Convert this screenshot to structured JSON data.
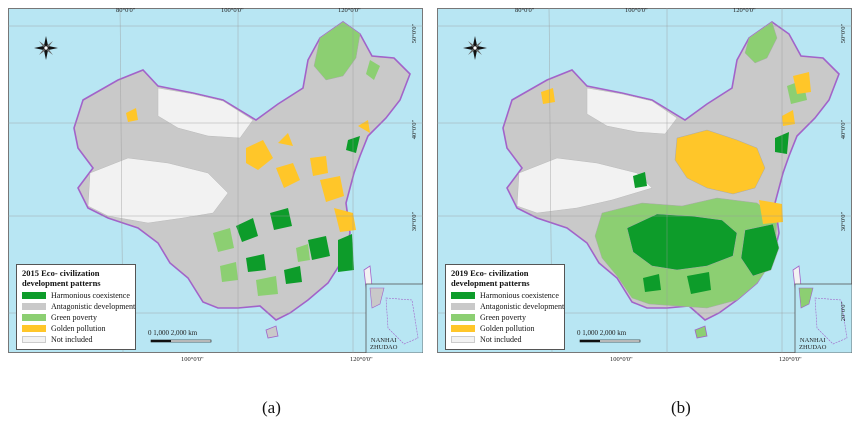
{
  "colors": {
    "harmonious": "#0d9c2a",
    "antagonistic": "#c9c9c9",
    "green_poverty": "#8ccf72",
    "golden_pollution": "#ffc629",
    "not_included": "#f2f2f2",
    "sea": "#b8e6f3",
    "border": "#a263c9"
  },
  "panels": [
    {
      "id": "a",
      "legend_title": "2015 Eco- civilization development patterns",
      "caption": "(a)"
    },
    {
      "id": "b",
      "legend_title": "2019 Eco- civilization development patterns",
      "caption": "(b)"
    }
  ],
  "legend_items": [
    "Harmonious coexistence",
    "Antagonistic development",
    "Green poverty",
    "Golden pollution",
    "Not included"
  ],
  "axes": {
    "top": [
      "80°0'0\"",
      "100°0'0\"",
      "120°0'0\""
    ],
    "bottom": [
      "100°0'0\"",
      "120°0'0\""
    ],
    "side": [
      "50°0'0\"",
      "40°0'0\"",
      "30°0'0\"",
      "20°0'0\""
    ]
  },
  "scale_bar": "0   1,000  2,000 km",
  "inset_label": [
    "NANHAI",
    "ZHUDAO"
  ],
  "compass_icon": "north-arrow-icon"
}
